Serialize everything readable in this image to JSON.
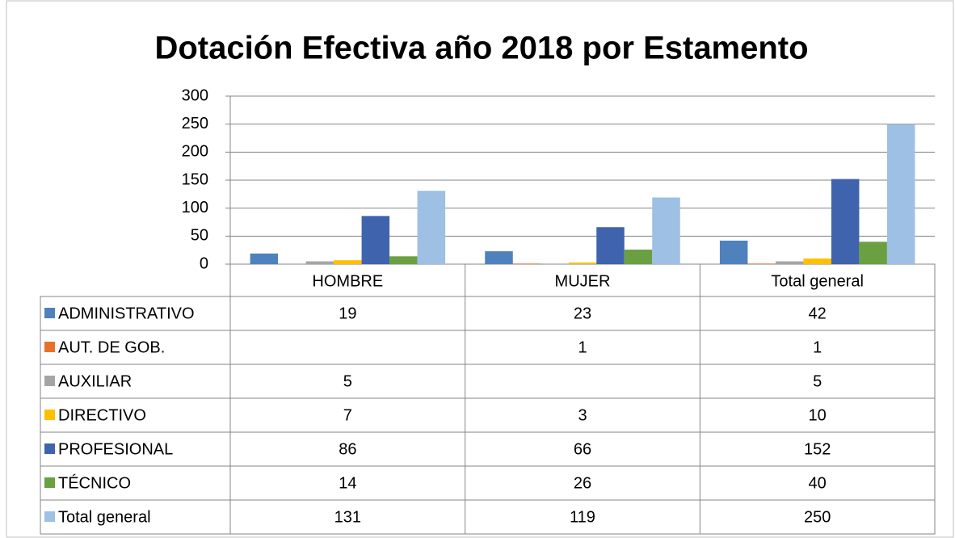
{
  "chart_data": {
    "type": "bar",
    "title": "Dotación Efectiva año 2018 por Estamento",
    "categories": [
      "HOMBRE",
      "MUJER",
      "Total general"
    ],
    "series": [
      {
        "name": "ADMINISTRATIVO",
        "color": "#4f81bd",
        "values": [
          19,
          23,
          42
        ]
      },
      {
        "name": "AUT. DE GOB.",
        "color": "#e8702a",
        "values": [
          null,
          1,
          1
        ]
      },
      {
        "name": "AUXILIAR",
        "color": "#a5a5a5",
        "values": [
          5,
          null,
          5
        ]
      },
      {
        "name": "DIRECTIVO",
        "color": "#ffc000",
        "values": [
          7,
          3,
          10
        ]
      },
      {
        "name": "PROFESIONAL",
        "color": "#3f64ad",
        "values": [
          86,
          66,
          152
        ]
      },
      {
        "name": "TÉCNICO",
        "color": "#6aa042",
        "values": [
          14,
          26,
          40
        ]
      },
      {
        "name": "Total general",
        "color": "#9dc0e4",
        "values": [
          131,
          119,
          250
        ]
      }
    ],
    "ylim": [
      0,
      300
    ],
    "yticks": [
      0,
      50,
      100,
      150,
      200,
      250,
      300
    ],
    "grid": true,
    "data_table": true
  }
}
